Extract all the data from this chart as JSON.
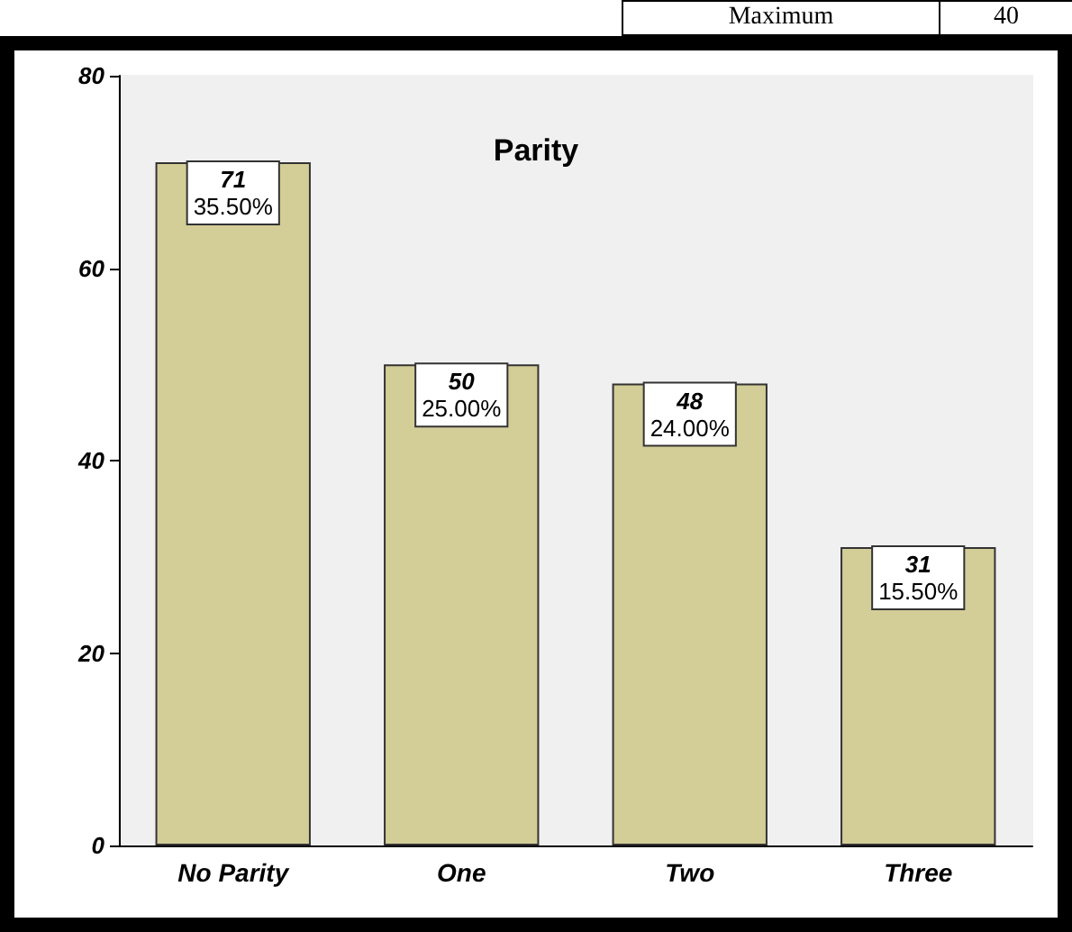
{
  "chart_data": {
    "type": "bar",
    "title": "Parity",
    "categories": [
      "No Parity",
      "One",
      "Two",
      "Three"
    ],
    "values": [
      71,
      50,
      48,
      31
    ],
    "color": "#d3cd98",
    "value_labels": [
      "71\n35.50%",
      "50\n25.00%",
      "48\n24.00%",
      "31\n15.50%"
    ],
    "ylim": [
      0,
      80
    ],
    "yticks": [
      0,
      20,
      40,
      60,
      80
    ],
    "grid": false,
    "annotations": [
      "Maximum",
      "40"
    ]
  }
}
